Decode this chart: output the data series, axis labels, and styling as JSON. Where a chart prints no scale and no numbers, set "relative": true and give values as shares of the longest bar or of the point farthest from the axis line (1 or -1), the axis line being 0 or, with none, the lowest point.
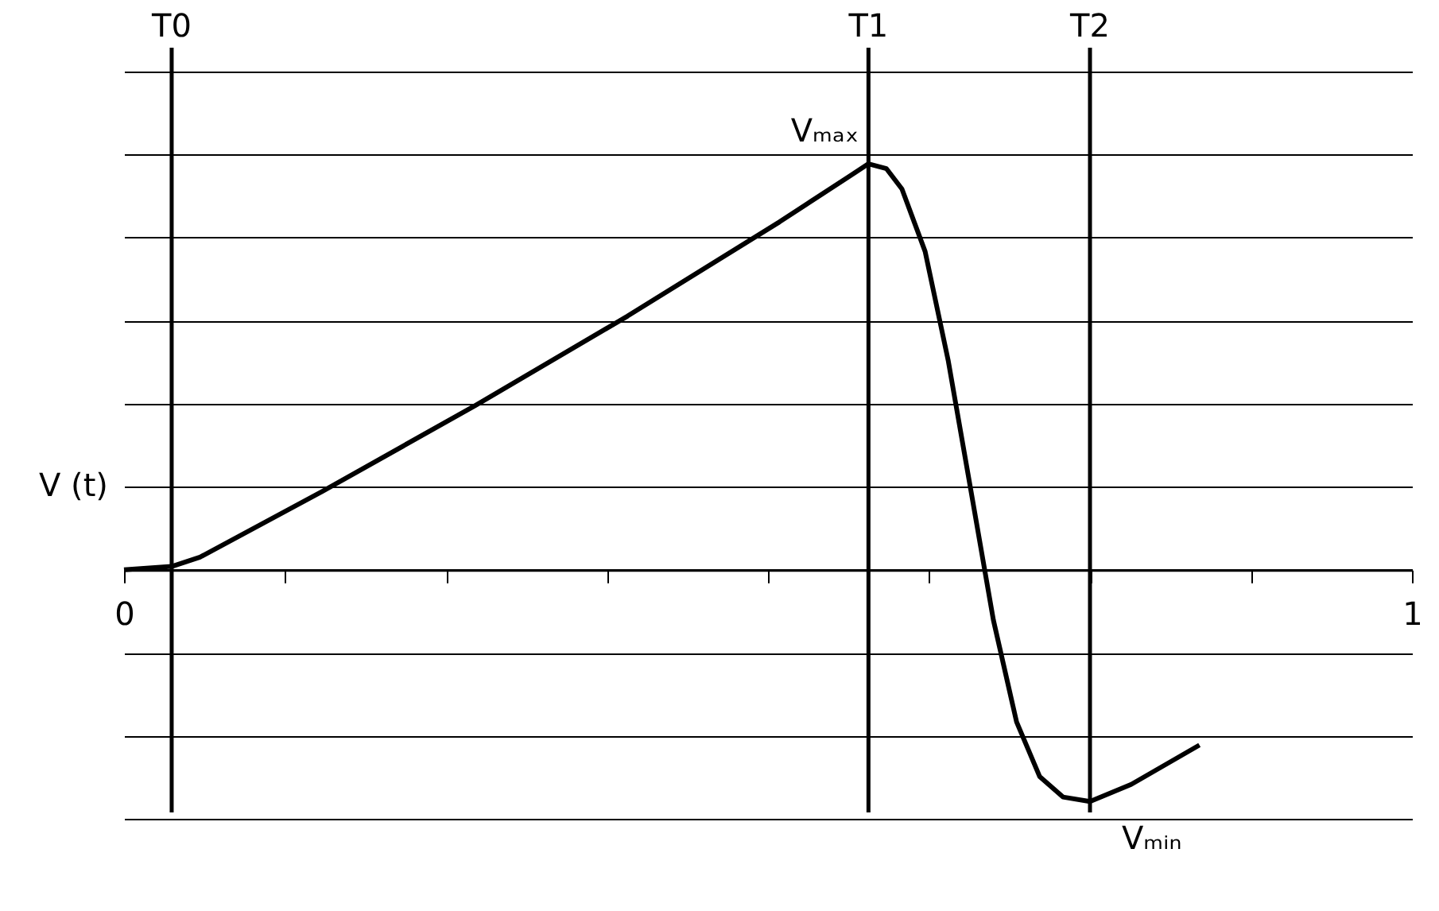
{
  "chart_data": {
    "type": "line",
    "relative": true,
    "ylabel": "V (t)",
    "x": [
      0,
      0.037,
      0.059,
      0.154,
      0.273,
      0.391,
      0.509,
      0.563,
      0.578,
      0.592,
      0.604,
      0.622,
      0.64,
      0.657,
      0.675,
      0.693,
      0.711,
      0.729,
      0.75,
      0.782,
      0.835
    ],
    "series": [
      {
        "color": "#000000",
        "values": [
          0,
          0.008,
          0.031,
          0.193,
          0.405,
          0.625,
          0.857,
          0.969,
          1,
          0.988,
          0.938,
          0.784,
          0.514,
          0.205,
          -0.124,
          -0.375,
          -0.51,
          -0.56,
          -0.571,
          -0.529,
          -0.432
        ]
      }
    ],
    "xlim": [
      0,
      1
    ],
    "xticks": [
      0,
      {
        "value": 0.125,
        "label": null
      },
      {
        "value": 0.25,
        "label": null
      },
      {
        "value": 0.375,
        "label": null
      },
      {
        "value": 0.5,
        "label": null
      },
      {
        "value": 0.625,
        "label": null
      },
      {
        "value": 0.75,
        "label": null
      },
      {
        "value": 0.875,
        "label": null
      },
      1
    ],
    "ref_lines": [
      {
        "axis": "x",
        "value": 0.037,
        "label": "T0",
        "color": "#000000"
      },
      {
        "axis": "x",
        "value": 0.578,
        "label": "T1",
        "color": "#000000"
      },
      {
        "axis": "x",
        "value": 0.75,
        "label": "T2",
        "color": "#000000"
      }
    ],
    "annotations": [
      {
        "text": "Vₘₐₓ",
        "x": 0.578,
        "y": 1
      },
      {
        "text": "Vₘᵢₙ",
        "x": 0.75,
        "y": -0.571
      }
    ],
    "grid": "y",
    "marker": "none",
    "line_style": "solid"
  }
}
